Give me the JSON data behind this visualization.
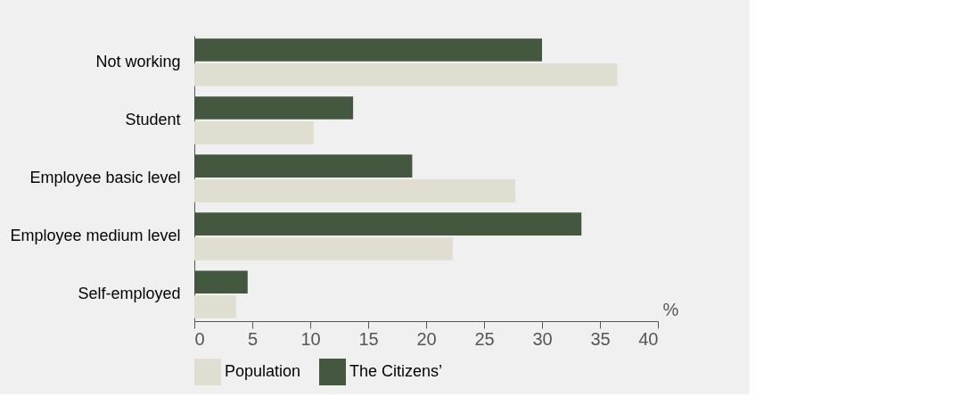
{
  "chart_data": {
    "type": "bar",
    "orientation": "horizontal",
    "xlabel": "%",
    "categories": [
      "Not working",
      "Student",
      "Employee basic level",
      "Employee medium level",
      "Self-employed"
    ],
    "series": [
      {
        "name": "Population",
        "color": "#e0ddd1",
        "values": [
          36.5,
          10.3,
          27.7,
          22.3,
          3.6
        ]
      },
      {
        "name": "The Citizens’",
        "color": "#44573f",
        "values": [
          30.0,
          13.7,
          18.8,
          33.4,
          4.6
        ]
      }
    ],
    "xlim": [
      0,
      40
    ],
    "xticks": [
      0,
      5,
      10,
      15,
      20,
      25,
      30,
      35,
      40
    ],
    "grid": false,
    "legend": "bottom"
  }
}
